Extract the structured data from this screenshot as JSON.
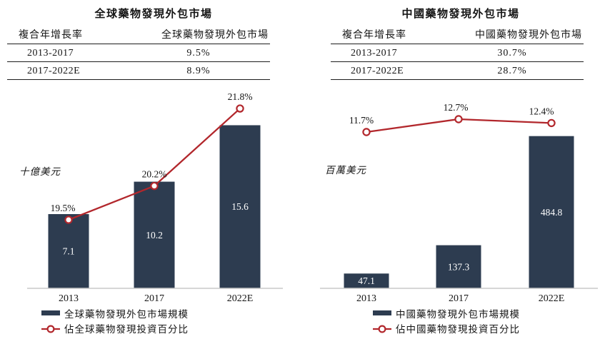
{
  "colors": {
    "bar": "#2d3c50",
    "line": "#b2272c",
    "marker_fill": "#ffffff",
    "axis": "#c8c8c8",
    "bar_label": "#ffffff",
    "text": "#151515",
    "table_rule": "#1d1d1d"
  },
  "panels": [
    {
      "title": "全球藥物發現外包市場",
      "table": {
        "columns": [
          "複合年增長率",
          "全球藥物發現外包市場"
        ],
        "rows": [
          {
            "period": "2013-2017",
            "value": "9.5%"
          },
          {
            "period": "2017-2022E",
            "value": "8.9%"
          }
        ]
      },
      "unit_label": "十億美元"
    },
    {
      "title": "中國藥物發現外包市場",
      "table": {
        "columns": [
          "複合年增長率",
          "中國藥物發現外包市場"
        ],
        "rows": [
          {
            "period": "2013-2017",
            "value": "30.7%"
          },
          {
            "period": "2017-2022E",
            "value": "28.7%"
          }
        ]
      },
      "unit_label": "百萬美元"
    }
  ],
  "chart_data": [
    {
      "type": "bar+line",
      "title": "全球藥物發現外包市場",
      "categories": [
        "2013",
        "2017",
        "2022E"
      ],
      "series": [
        {
          "name": "全球藥物發現外包市場規模",
          "type": "bar",
          "unit": "十億美元",
          "values": [
            7.1,
            10.2,
            15.6
          ],
          "labels": [
            "7.1",
            "10.2",
            "15.6"
          ]
        },
        {
          "name": "佔全球藥物發現投資百分比",
          "type": "line",
          "unit": "%",
          "values": [
            19.5,
            20.2,
            21.8
          ],
          "labels": [
            "19.5%",
            "20.2%",
            "21.8%"
          ]
        }
      ],
      "y_axis": "hidden",
      "grid": false,
      "legend_position": "bottom-left"
    },
    {
      "type": "bar+line",
      "title": "中國藥物發現外包市場",
      "categories": [
        "2013",
        "2017",
        "2022E"
      ],
      "series": [
        {
          "name": "中國藥物發現外包市場規模",
          "type": "bar",
          "unit": "百萬美元",
          "values": [
            47.1,
            137.3,
            484.8
          ],
          "labels": [
            "47.1",
            "137.3",
            "484.8"
          ]
        },
        {
          "name": "佔中國藥物發現投資百分比",
          "type": "line",
          "unit": "%",
          "values": [
            11.7,
            12.7,
            12.4
          ],
          "labels": [
            "11.7%",
            "12.7%",
            "12.4%"
          ]
        }
      ],
      "y_axis": "hidden",
      "grid": false,
      "legend_position": "bottom-left"
    }
  ]
}
